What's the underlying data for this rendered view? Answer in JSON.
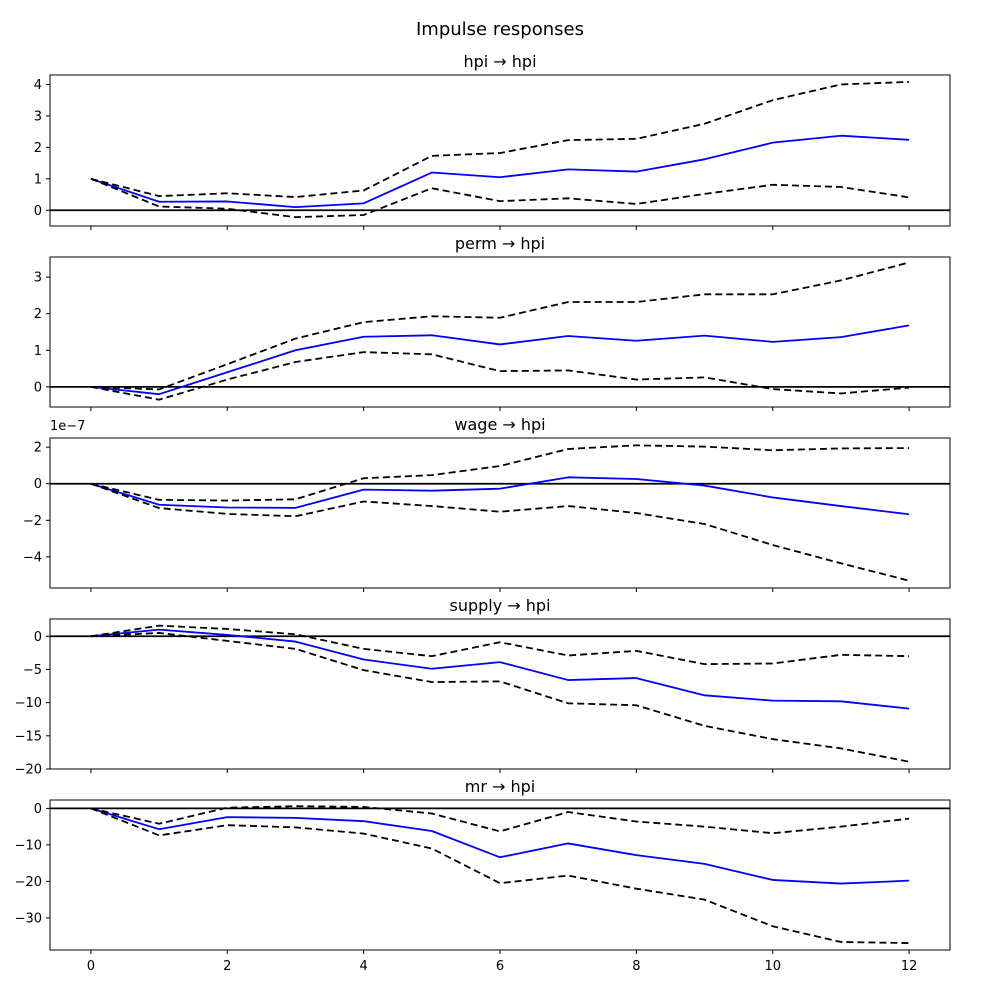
{
  "figure": {
    "title": "Impulse responses"
  },
  "colors": {
    "response": "#0000ff",
    "band": "#000000",
    "zero_line": "#000000",
    "frame": "#000000",
    "background": "#ffffff"
  },
  "chart_data": [
    {
      "type": "line",
      "title": "hpi → hpi",
      "x": [
        0,
        1,
        2,
        3,
        4,
        5,
        6,
        7,
        8,
        9,
        10,
        11,
        12
      ],
      "xticks": [
        "0",
        "2",
        "4",
        "6",
        "8",
        "10",
        "12"
      ],
      "xticklabels_visible": false,
      "ylim": [
        -0.5,
        4.3
      ],
      "yticks": [
        0,
        1,
        2,
        3,
        4
      ],
      "yticklabels": [
        "0",
        "1",
        "2",
        "3",
        "4"
      ],
      "offset_text": "",
      "hline": 0,
      "series": [
        {
          "role": "response",
          "style": "solid",
          "values": [
            1.0,
            0.27,
            0.28,
            0.1,
            0.22,
            1.2,
            1.05,
            1.3,
            1.23,
            1.62,
            2.15,
            2.37,
            2.24
          ]
        },
        {
          "role": "upper",
          "style": "dashed",
          "values": [
            1.0,
            0.45,
            0.54,
            0.42,
            0.63,
            1.73,
            1.82,
            2.23,
            2.27,
            2.75,
            3.5,
            4.0,
            4.08
          ]
        },
        {
          "role": "lower",
          "style": "dashed",
          "values": [
            1.0,
            0.12,
            0.05,
            -0.22,
            -0.15,
            0.7,
            0.29,
            0.38,
            0.2,
            0.52,
            0.81,
            0.74,
            0.41
          ]
        }
      ]
    },
    {
      "type": "line",
      "title": "perm → hpi",
      "x": [
        0,
        1,
        2,
        3,
        4,
        5,
        6,
        7,
        8,
        9,
        10,
        11,
        12
      ],
      "xticks": [
        "0",
        "2",
        "4",
        "6",
        "8",
        "10",
        "12"
      ],
      "xticklabels_visible": false,
      "ylim": [
        -0.55,
        3.55
      ],
      "yticks": [
        0,
        1,
        2,
        3
      ],
      "yticklabels": [
        "0",
        "1",
        "2",
        "3"
      ],
      "offset_text": "",
      "hline": 0,
      "series": [
        {
          "role": "response",
          "style": "solid",
          "values": [
            0.0,
            -0.2,
            0.4,
            1.0,
            1.37,
            1.41,
            1.16,
            1.39,
            1.26,
            1.4,
            1.23,
            1.36,
            1.68
          ]
        },
        {
          "role": "upper",
          "style": "dashed",
          "values": [
            0.0,
            -0.07,
            0.62,
            1.32,
            1.77,
            1.93,
            1.89,
            2.32,
            2.32,
            2.53,
            2.53,
            2.91,
            3.4
          ]
        },
        {
          "role": "lower",
          "style": "dashed",
          "values": [
            0.0,
            -0.35,
            0.2,
            0.68,
            0.95,
            0.89,
            0.43,
            0.45,
            0.2,
            0.26,
            -0.06,
            -0.18,
            -0.02
          ]
        }
      ]
    },
    {
      "type": "line",
      "title": "wage → hpi",
      "x": [
        0,
        1,
        2,
        3,
        4,
        5,
        6,
        7,
        8,
        9,
        10,
        11,
        12
      ],
      "xticks": [
        "0",
        "2",
        "4",
        "6",
        "8",
        "10",
        "12"
      ],
      "xticklabels_visible": false,
      "ylim": [
        -5.7,
        2.5
      ],
      "yticks": [
        -4,
        -2,
        0,
        2
      ],
      "yticklabels": [
        "−4",
        "−2",
        "0",
        "2"
      ],
      "offset_text": "1e−7",
      "hline": 0,
      "series": [
        {
          "role": "response",
          "style": "solid",
          "values": [
            0.0,
            -1.15,
            -1.3,
            -1.32,
            -0.32,
            -0.38,
            -0.27,
            0.35,
            0.26,
            -0.1,
            -0.75,
            -1.22,
            -1.67
          ]
        },
        {
          "role": "upper",
          "style": "dashed",
          "values": [
            0.0,
            -0.88,
            -0.92,
            -0.85,
            0.3,
            0.47,
            0.97,
            1.9,
            2.1,
            2.03,
            1.83,
            1.93,
            1.95
          ]
        },
        {
          "role": "lower",
          "style": "dashed",
          "values": [
            0.0,
            -1.33,
            -1.65,
            -1.78,
            -0.97,
            -1.22,
            -1.53,
            -1.22,
            -1.6,
            -2.2,
            -3.35,
            -4.35,
            -5.3
          ]
        }
      ]
    },
    {
      "type": "line",
      "title": "supply → hpi",
      "x": [
        0,
        1,
        2,
        3,
        4,
        5,
        6,
        7,
        8,
        9,
        10,
        11,
        12
      ],
      "xticks": [
        "0",
        "2",
        "4",
        "6",
        "8",
        "10",
        "12"
      ],
      "xticklabels_visible": false,
      "ylim": [
        -20.0,
        2.6
      ],
      "yticks": [
        -20,
        -15,
        -10,
        -5,
        0
      ],
      "yticklabels": [
        "−20",
        "−15",
        "−10",
        "−5",
        "0"
      ],
      "offset_text": "",
      "hline": 0,
      "series": [
        {
          "role": "response",
          "style": "solid",
          "values": [
            0.0,
            1.0,
            0.2,
            -0.8,
            -3.5,
            -4.9,
            -3.9,
            -6.6,
            -6.3,
            -8.9,
            -9.7,
            -9.8,
            -10.9
          ]
        },
        {
          "role": "upper",
          "style": "dashed",
          "values": [
            0.0,
            1.6,
            1.1,
            0.3,
            -1.9,
            -3.0,
            -0.9,
            -2.9,
            -2.2,
            -4.2,
            -4.1,
            -2.8,
            -3.0
          ]
        },
        {
          "role": "lower",
          "style": "dashed",
          "values": [
            0.0,
            0.5,
            -0.7,
            -1.9,
            -5.1,
            -6.9,
            -6.8,
            -10.1,
            -10.4,
            -13.5,
            -15.5,
            -16.9,
            -18.9
          ]
        }
      ]
    },
    {
      "type": "line",
      "title": "mr → hpi",
      "x": [
        0,
        1,
        2,
        3,
        4,
        5,
        6,
        7,
        8,
        9,
        10,
        11,
        12
      ],
      "xticks": [
        "0",
        "2",
        "4",
        "6",
        "8",
        "10",
        "12"
      ],
      "xticklabels_visible": true,
      "ylim": [
        -38.8,
        2.3
      ],
      "yticks": [
        -30,
        -20,
        -10,
        0
      ],
      "yticklabels": [
        "−30",
        "−20",
        "−10",
        "0"
      ],
      "offset_text": "",
      "hline": 0,
      "series": [
        {
          "role": "response",
          "style": "solid",
          "values": [
            0.0,
            -5.7,
            -2.4,
            -2.6,
            -3.5,
            -6.2,
            -13.4,
            -9.6,
            -12.8,
            -15.2,
            -19.6,
            -20.6,
            -19.8
          ]
        },
        {
          "role": "upper",
          "style": "dashed",
          "values": [
            0.0,
            -4.2,
            0.2,
            0.6,
            0.4,
            -1.4,
            -6.3,
            -1.0,
            -3.6,
            -5.0,
            -6.8,
            -5.0,
            -2.8
          ]
        },
        {
          "role": "lower",
          "style": "dashed",
          "values": [
            0.0,
            -7.4,
            -4.6,
            -5.2,
            -6.9,
            -11.0,
            -20.5,
            -18.4,
            -22.0,
            -25.0,
            -32.3,
            -36.6,
            -36.9
          ]
        }
      ]
    }
  ]
}
